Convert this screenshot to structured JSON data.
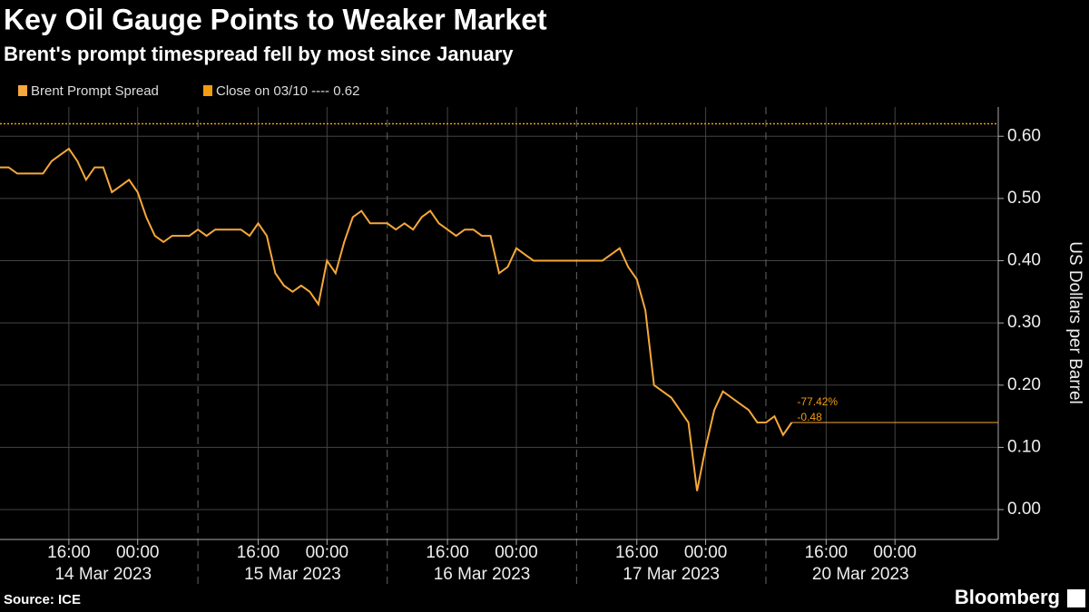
{
  "chart_data": {
    "type": "line",
    "title": "Key Oil Gauge Points to Weaker Market",
    "subtitle": "Brent's prompt timespread fell by most since January",
    "y_axis_label": "US Dollars per Barrel",
    "source": "Source: ICE",
    "brand": "Bloomberg",
    "categories": [
      null,
      null,
      null,
      null,
      null,
      null,
      null,
      null,
      null,
      null,
      null,
      null,
      null,
      null,
      null,
      null,
      null,
      null,
      null,
      null,
      null,
      null,
      null,
      null,
      null,
      null,
      null,
      null,
      null,
      null,
      null,
      null,
      null,
      null,
      null,
      null,
      null,
      null,
      null,
      null,
      null,
      null,
      null,
      null,
      null,
      null,
      null,
      null,
      null,
      null,
      null,
      null,
      null,
      null,
      null,
      null,
      null,
      null,
      null,
      null,
      null,
      null,
      null,
      null,
      null,
      null,
      null,
      null,
      null,
      null,
      null,
      null,
      null,
      null,
      null,
      null,
      null,
      null,
      null,
      null,
      null,
      null,
      null,
      null,
      null,
      null,
      null,
      null,
      null,
      null,
      null,
      null,
      null,
      null,
      null,
      null,
      null,
      null,
      null,
      null,
      null,
      null,
      null,
      null,
      null,
      null,
      null,
      null,
      null,
      null,
      null,
      null,
      null,
      null,
      null,
      null
    ],
    "series": [
      {
        "name": "Brent Prompt Spread",
        "color": "#f7a83a",
        "values": [
          0.55,
          0.55,
          0.54,
          0.54,
          0.54,
          0.54,
          0.56,
          0.57,
          0.58,
          0.56,
          0.53,
          0.55,
          0.55,
          0.51,
          0.52,
          0.53,
          0.51,
          0.47,
          0.44,
          0.43,
          0.44,
          0.44,
          0.44,
          0.45,
          0.44,
          0.45,
          0.45,
          0.45,
          0.45,
          0.44,
          0.46,
          0.44,
          0.38,
          0.36,
          0.35,
          0.36,
          0.35,
          0.33,
          0.4,
          0.38,
          0.43,
          0.47,
          0.48,
          0.46,
          0.46,
          0.46,
          0.45,
          0.46,
          0.45,
          0.47,
          0.48,
          0.46,
          0.45,
          0.44,
          0.45,
          0.45,
          0.44,
          0.44,
          0.38,
          0.39,
          0.42,
          0.41,
          0.4,
          0.4,
          0.4,
          0.4,
          0.4,
          0.4,
          0.4,
          0.4,
          0.4,
          0.41,
          0.42,
          0.39,
          0.37,
          0.32,
          0.2,
          0.19,
          0.18,
          0.16,
          0.14,
          0.03,
          0.1,
          0.16,
          0.19,
          0.18,
          0.17,
          0.16,
          0.14,
          0.14,
          0.15,
          0.12,
          0.14,
          null,
          null,
          null,
          null,
          null,
          null,
          null,
          null,
          null,
          null,
          null,
          null,
          null,
          null,
          null,
          null,
          null,
          null,
          null,
          null,
          null,
          null,
          null
        ]
      }
    ],
    "reference": {
      "label": "Close on 03/10 ---- 0.62",
      "value": 0.62,
      "color": "#f39c12"
    },
    "annotations": [
      "-77.42%",
      "-0.48"
    ],
    "ylim": [
      -0.048,
      0.647
    ],
    "yticks": [
      {
        "value": 0,
        "label": "0.00"
      },
      {
        "value": 0.1,
        "label": "0.10"
      },
      {
        "value": 0.2,
        "label": "0.20"
      },
      {
        "value": 0.3,
        "label": "0.30"
      },
      {
        "value": 0.4,
        "label": "0.40"
      },
      {
        "value": 0.5,
        "label": "0.50"
      },
      {
        "value": 0.6,
        "label": "0.60"
      }
    ],
    "xticks": [
      {
        "value": 8,
        "label": "16:00"
      },
      {
        "value": 16,
        "label": "00:00"
      },
      {
        "value": 30,
        "label": "16:00"
      },
      {
        "value": 38,
        "label": "00:00"
      },
      {
        "value": 52,
        "label": "16:00"
      },
      {
        "value": 60,
        "label": "00:00"
      },
      {
        "value": 74,
        "label": "16:00"
      },
      {
        "value": 82,
        "label": "00:00"
      },
      {
        "value": 96,
        "label": "16:00"
      },
      {
        "value": 104,
        "label": "00:00"
      }
    ],
    "date_labels": [
      "14 Mar 2023",
      "15 Mar 2023",
      "16 Mar 2023",
      "17 Mar 2023",
      "20 Mar 2023"
    ],
    "grid": true
  }
}
